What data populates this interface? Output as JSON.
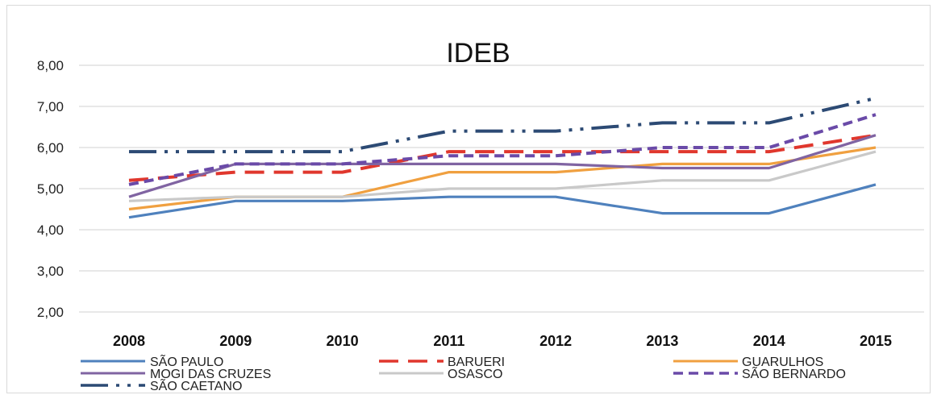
{
  "chart_data": {
    "type": "line",
    "title": "IDEB",
    "xlabel": "",
    "ylabel": "",
    "ylim": [
      2,
      8
    ],
    "yticks": [
      "2,00",
      "3,00",
      "4,00",
      "5,00",
      "6,00",
      "7,00",
      "8,00"
    ],
    "categories": [
      "2008",
      "2009",
      "2010",
      "2011",
      "2012",
      "2013",
      "2014",
      "2015"
    ],
    "grid": true,
    "legend_position": "bottom",
    "series": [
      {
        "name": "SÃO PAULO",
        "values": [
          4.3,
          4.7,
          4.7,
          4.8,
          4.8,
          4.4,
          4.4,
          5.1
        ],
        "color": "#4f81bd",
        "style": "solid"
      },
      {
        "name": "BARUERI",
        "values": [
          5.2,
          5.4,
          5.4,
          5.9,
          5.9,
          5.9,
          5.9,
          6.3
        ],
        "color": "#e0372d",
        "style": "long-dash"
      },
      {
        "name": "GUARULHOS",
        "values": [
          4.5,
          4.8,
          4.8,
          5.4,
          5.4,
          5.6,
          5.6,
          6.0
        ],
        "color": "#f0a040",
        "style": "solid"
      },
      {
        "name": "MOGI DAS CRUZES",
        "values": [
          4.8,
          5.6,
          5.6,
          5.6,
          5.6,
          5.5,
          5.5,
          6.3
        ],
        "color": "#8064a2",
        "style": "solid"
      },
      {
        "name": "OSASCO",
        "values": [
          4.7,
          4.8,
          4.8,
          5.0,
          5.0,
          5.2,
          5.2,
          5.9
        ],
        "color": "#c9c9c9",
        "style": "solid"
      },
      {
        "name": "SÃO BERNARDO",
        "values": [
          5.1,
          5.6,
          5.6,
          5.8,
          5.8,
          6.0,
          6.0,
          6.8
        ],
        "color": "#6a4aa8",
        "style": "dash"
      },
      {
        "name": "SÃO CAETANO",
        "values": [
          5.9,
          5.9,
          5.9,
          6.4,
          6.4,
          6.6,
          6.6,
          7.2
        ],
        "color": "#2c4a74",
        "style": "long-dash-dot-dot"
      }
    ]
  }
}
